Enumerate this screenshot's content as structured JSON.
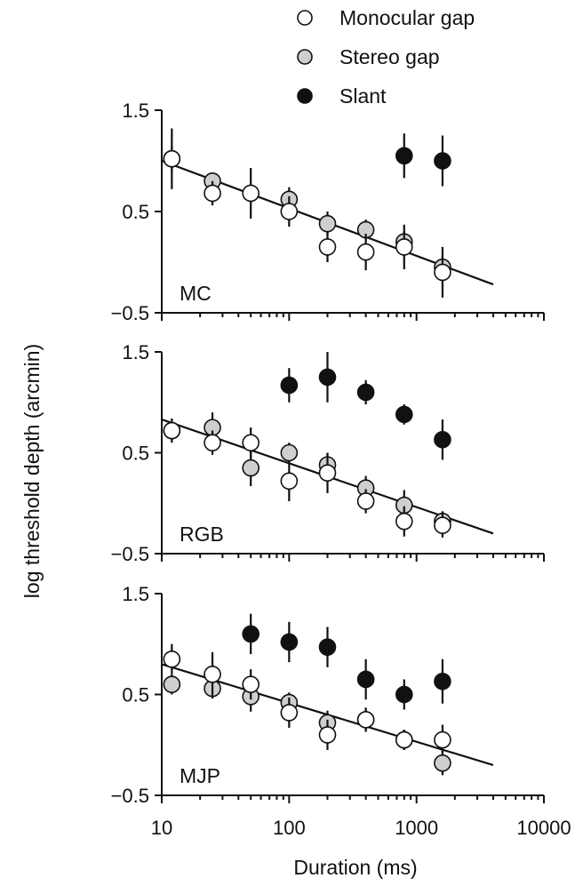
{
  "chart_data": {
    "type": "scatter",
    "ylabel": "log threshold depth (arcmin)",
    "xlabel": "Duration (ms)",
    "x_scale": "log",
    "xlim": [
      10,
      10000
    ],
    "x_ticks": [
      "10",
      "100",
      "1000",
      "10000"
    ],
    "ylim": [
      -0.5,
      1.5
    ],
    "y_ticks": [
      "−0.5",
      "0.5",
      "1.5"
    ],
    "legend": {
      "placement": "top",
      "entries": [
        {
          "label": "Monocular gap",
          "color": "#ffffff"
        },
        {
          "label": "Stereo gap",
          "color": "#cfcfcf"
        },
        {
          "label": "Slant",
          "color": "#111111"
        }
      ]
    },
    "panels": [
      {
        "label": "MC",
        "fit_line": {
          "x": [
            10,
            4000
          ],
          "y": [
            1.0,
            -0.22
          ]
        },
        "series": [
          {
            "name": "Monocular gap",
            "points": [
              {
                "x": 12,
                "y": 1.02,
                "err": 0.3
              },
              {
                "x": 25,
                "y": 0.68,
                "err": 0.12
              },
              {
                "x": 50,
                "y": 0.68,
                "err": 0.25
              },
              {
                "x": 100,
                "y": 0.5,
                "err": 0.15
              },
              {
                "x": 200,
                "y": 0.15,
                "err": 0.15
              },
              {
                "x": 400,
                "y": 0.1,
                "err": 0.18
              },
              {
                "x": 800,
                "y": 0.15,
                "err": 0.22
              },
              {
                "x": 1600,
                "y": -0.1,
                "err": 0.25
              }
            ]
          },
          {
            "name": "Stereo gap",
            "points": [
              {
                "x": 12,
                "y": 1.02,
                "err": 0.12
              },
              {
                "x": 25,
                "y": 0.8,
                "err": 0.08
              },
              {
                "x": 100,
                "y": 0.62,
                "err": 0.12
              },
              {
                "x": 200,
                "y": 0.38,
                "err": 0.12
              },
              {
                "x": 400,
                "y": 0.32,
                "err": 0.1
              },
              {
                "x": 800,
                "y": 0.2,
                "err": 0.1
              },
              {
                "x": 1600,
                "y": -0.05,
                "err": 0.12
              }
            ]
          },
          {
            "name": "Slant",
            "points": [
              {
                "x": 800,
                "y": 1.05,
                "err": 0.22
              },
              {
                "x": 1600,
                "y": 1.0,
                "err": 0.25
              }
            ]
          }
        ]
      },
      {
        "label": "RGB",
        "fit_line": {
          "x": [
            10,
            4000
          ],
          "y": [
            0.83,
            -0.3
          ]
        },
        "series": [
          {
            "name": "Monocular gap",
            "points": [
              {
                "x": 12,
                "y": 0.72,
                "err": 0.12
              },
              {
                "x": 25,
                "y": 0.6,
                "err": 0.12
              },
              {
                "x": 50,
                "y": 0.6,
                "err": 0.15
              },
              {
                "x": 100,
                "y": 0.22,
                "err": 0.2
              },
              {
                "x": 200,
                "y": 0.3,
                "err": 0.2
              },
              {
                "x": 400,
                "y": 0.02,
                "err": 0.12
              },
              {
                "x": 800,
                "y": -0.18,
                "err": 0.15
              },
              {
                "x": 1600,
                "y": -0.22,
                "err": 0.12
              }
            ]
          },
          {
            "name": "Stereo gap",
            "points": [
              {
                "x": 12,
                "y": 0.72,
                "err": 0.08
              },
              {
                "x": 25,
                "y": 0.75,
                "err": 0.15
              },
              {
                "x": 50,
                "y": 0.35,
                "err": 0.18
              },
              {
                "x": 100,
                "y": 0.5,
                "err": 0.1
              },
              {
                "x": 200,
                "y": 0.38,
                "err": 0.12
              },
              {
                "x": 400,
                "y": 0.15,
                "err": 0.12
              },
              {
                "x": 800,
                "y": -0.02,
                "err": 0.15
              },
              {
                "x": 1600,
                "y": -0.18,
                "err": 0.1
              }
            ]
          },
          {
            "name": "Slant",
            "points": [
              {
                "x": 100,
                "y": 1.17,
                "err": 0.17
              },
              {
                "x": 200,
                "y": 1.25,
                "err": 0.25
              },
              {
                "x": 400,
                "y": 1.1,
                "err": 0.12
              },
              {
                "x": 800,
                "y": 0.88,
                "err": 0.1
              },
              {
                "x": 1600,
                "y": 0.63,
                "err": 0.2
              }
            ]
          }
        ]
      },
      {
        "label": "MJP",
        "fit_line": {
          "x": [
            10,
            4000
          ],
          "y": [
            0.8,
            -0.2
          ]
        },
        "series": [
          {
            "name": "Monocular gap",
            "points": [
              {
                "x": 12,
                "y": 0.85,
                "err": 0.15
              },
              {
                "x": 25,
                "y": 0.7,
                "err": 0.22
              },
              {
                "x": 50,
                "y": 0.6,
                "err": 0.15
              },
              {
                "x": 100,
                "y": 0.32,
                "err": 0.15
              },
              {
                "x": 200,
                "y": 0.1,
                "err": 0.15
              },
              {
                "x": 400,
                "y": 0.25,
                "err": 0.12
              },
              {
                "x": 800,
                "y": 0.05,
                "err": 0.1
              },
              {
                "x": 1600,
                "y": 0.05,
                "err": 0.15
              }
            ]
          },
          {
            "name": "Stereo gap",
            "points": [
              {
                "x": 12,
                "y": 0.6,
                "err": 0.1
              },
              {
                "x": 25,
                "y": 0.56,
                "err": 0.1
              },
              {
                "x": 50,
                "y": 0.48,
                "err": 0.15
              },
              {
                "x": 100,
                "y": 0.42,
                "err": 0.1
              },
              {
                "x": 200,
                "y": 0.22,
                "err": 0.12
              },
              {
                "x": 400,
                "y": 0.25,
                "err": 0.1
              },
              {
                "x": 800,
                "y": 0.05,
                "err": 0.1
              },
              {
                "x": 1600,
                "y": -0.18,
                "err": 0.12
              }
            ]
          },
          {
            "name": "Slant",
            "points": [
              {
                "x": 50,
                "y": 1.1,
                "err": 0.2
              },
              {
                "x": 100,
                "y": 1.02,
                "err": 0.2
              },
              {
                "x": 200,
                "y": 0.97,
                "err": 0.2
              },
              {
                "x": 400,
                "y": 0.65,
                "err": 0.2
              },
              {
                "x": 800,
                "y": 0.5,
                "err": 0.15
              },
              {
                "x": 1600,
                "y": 0.63,
                "err": 0.22
              }
            ]
          }
        ]
      }
    ]
  }
}
